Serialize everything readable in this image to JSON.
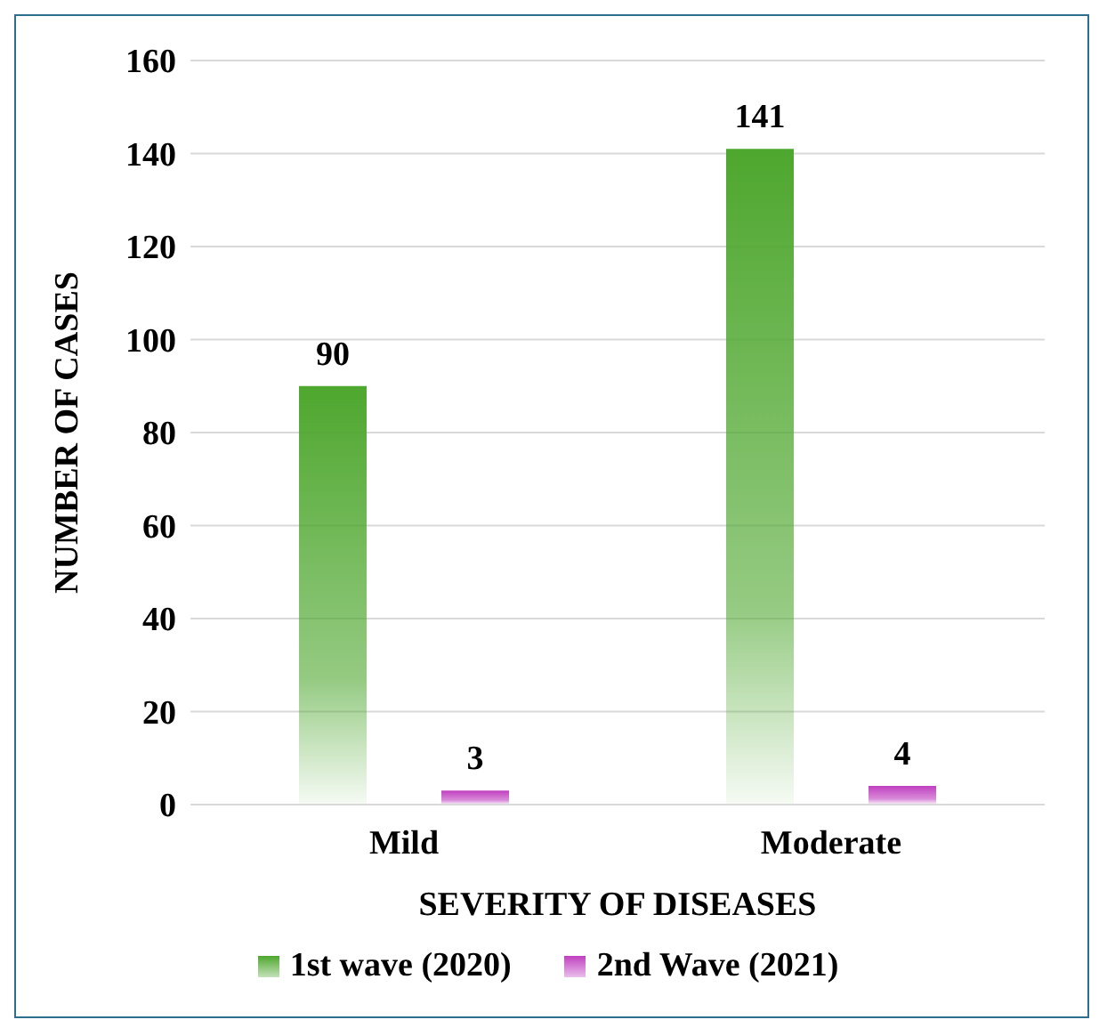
{
  "chart_data": {
    "type": "bar",
    "xlabel": "SEVERITY OF DISEASES",
    "ylabel": "NUMBER OF CASES",
    "categories": [
      "Mild",
      "Moderate"
    ],
    "series": [
      {
        "name": "1st wave (2020)",
        "color": "#4ea72e",
        "values": [
          90,
          141
        ]
      },
      {
        "name": "2nd Wave (2021)",
        "color": "#c040c0",
        "values": [
          3,
          4
        ]
      }
    ],
    "ylim": [
      0,
      160
    ],
    "yticks": [
      0,
      20,
      40,
      60,
      80,
      100,
      120,
      140,
      160
    ],
    "grid": "y",
    "legend": "bottom",
    "data_labels": true
  }
}
